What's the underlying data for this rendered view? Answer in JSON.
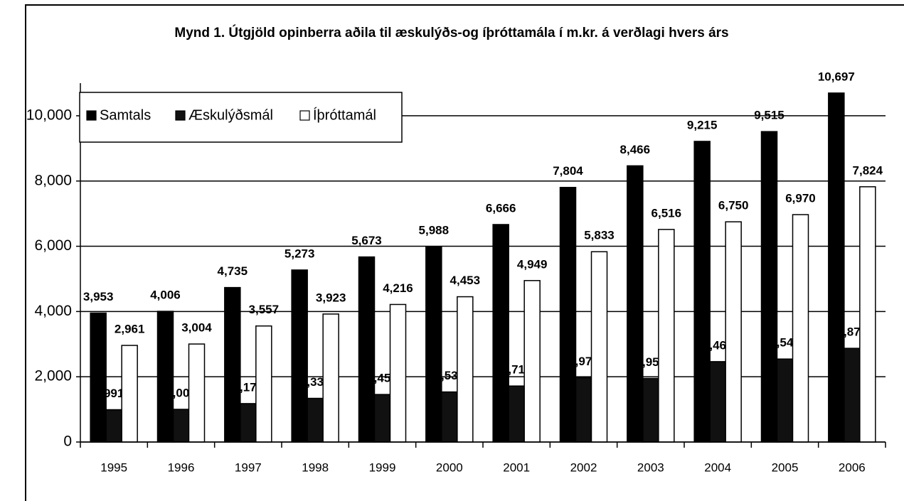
{
  "chart_data": {
    "type": "bar",
    "title": "Mynd 1. Útgjöld opinberra aðila til æskulýðs-og íþróttamála í m.kr. á verðlagi hvers árs",
    "categories": [
      "1995",
      "1996",
      "1997",
      "1998",
      "1999",
      "2000",
      "2001",
      "2002",
      "2003",
      "2004",
      "2005",
      "2006"
    ],
    "series": [
      {
        "name": "Samtals",
        "color": "#000000",
        "values": [
          3953,
          4006,
          4735,
          5273,
          5673,
          5988,
          6666,
          7804,
          8466,
          9215,
          9515,
          10697
        ],
        "value_labels": [
          "3,953",
          "4,006",
          "4,735",
          "5,273",
          "5,673",
          "5,988",
          "6,666",
          "7,804",
          "8,466",
          "9,215",
          "9,515",
          "10,697"
        ]
      },
      {
        "name": "Æskulýðsmál",
        "color": "#111111",
        "values": [
          991,
          1002,
          1178,
          1339,
          1457,
          1535,
          1717,
          1971,
          1950,
          2464,
          2544,
          2872
        ],
        "value_labels": [
          "991",
          "1,002",
          "1,178",
          "1,339",
          "1,457",
          "1,535",
          "1,717",
          "1,971",
          "1,950",
          "2,464",
          "2,544",
          "2,872"
        ]
      },
      {
        "name": "Íþróttamál",
        "color": "#ffffff",
        "values": [
          2961,
          3004,
          3557,
          3923,
          4216,
          4453,
          4949,
          5833,
          6516,
          6750,
          6970,
          7824
        ],
        "value_labels": [
          "2,961",
          "3,004",
          "3,557",
          "3,923",
          "4,216",
          "4,453",
          "4,949",
          "5,833",
          "6,516",
          "6,750",
          "6,970",
          "7,824"
        ]
      }
    ],
    "ylim": [
      0,
      11000
    ],
    "yticks": [
      0,
      {
        "value": 2000,
        "label": "2,000"
      },
      {
        "value": 4000,
        "label": "4,000"
      },
      {
        "value": 6000,
        "label": "6,000"
      },
      {
        "value": 8000,
        "label": "8,000"
      },
      {
        "value": 10000,
        "label": "10,000"
      }
    ],
    "grid": true,
    "legend": "top-left"
  }
}
